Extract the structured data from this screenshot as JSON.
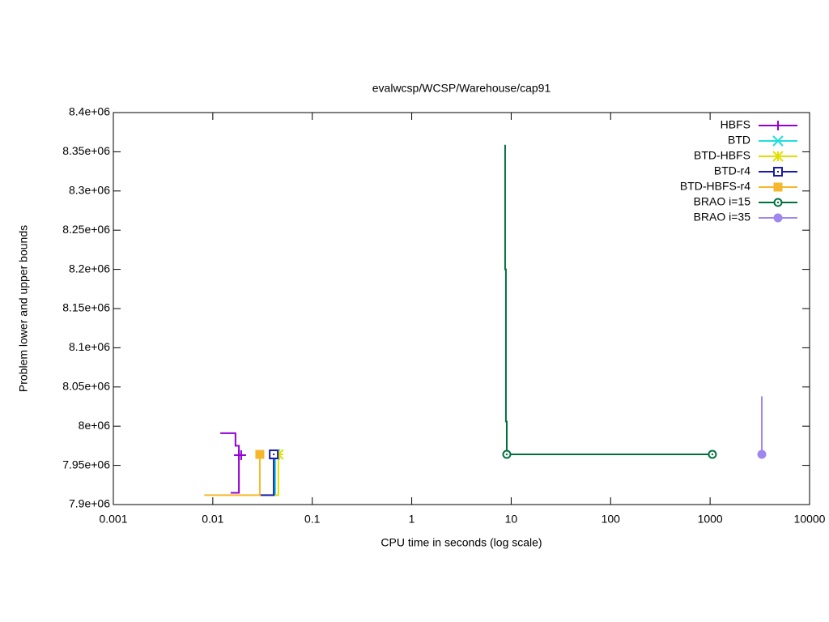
{
  "chart_data": {
    "type": "line",
    "title": "evalwcsp/WCSP/Warehouse/cap91",
    "x_label": "CPU time in seconds (log scale)",
    "y_label": "Problem lower and upper bounds",
    "x_scale": "log",
    "xlim": [
      0.001,
      10000
    ],
    "xticks": [
      0.001,
      0.01,
      0.1,
      1,
      10,
      100,
      1000,
      10000
    ],
    "ylim": [
      7900000,
      8400000
    ],
    "yticks": [
      {
        "value": 7900000,
        "label": "7.9e+06"
      },
      {
        "value": 7950000,
        "label": "7.95e+06"
      },
      {
        "value": 8000000,
        "label": "8e+06"
      },
      {
        "value": 8050000,
        "label": "8.05e+06"
      },
      {
        "value": 8100000,
        "label": "8.1e+06"
      },
      {
        "value": 8150000,
        "label": "8.15e+06"
      },
      {
        "value": 8200000,
        "label": "8.2e+06"
      },
      {
        "value": 8250000,
        "label": "8.25e+06"
      },
      {
        "value": 8300000,
        "label": "8.3e+06"
      },
      {
        "value": 8350000,
        "label": "8.35e+06"
      },
      {
        "value": 8400000,
        "label": "8.4e+06"
      }
    ],
    "legend": "top-right",
    "series": [
      {
        "name": "HBFS",
        "color": "#9400d3",
        "marker": "plus",
        "x": [
          0.0151,
          0.0183,
          0.0183,
          null,
          0.0119,
          0.0169,
          0.0169,
          0.0183,
          0.0183,
          0.0193
        ],
        "values": [
          7915000,
          7915000,
          7963000,
          null,
          7991000,
          7991000,
          7975000,
          7975000,
          7963000,
          7963000
        ]
      },
      {
        "name": "BTD",
        "color": "#22dede",
        "marker": "cross",
        "x": [
          0.041,
          0.0424,
          0.0424
        ],
        "values": [
          7912000,
          7912000,
          7964000
        ]
      },
      {
        "name": "BTD-HBFS",
        "color": "#e0e000",
        "marker": "star",
        "x": [
          0.0424,
          0.0457,
          0.0457
        ],
        "values": [
          7912000,
          7912000,
          7964000
        ]
      },
      {
        "name": "BTD-r4",
        "color": "#1a1aa8",
        "marker": "square-open",
        "x": [
          0.0297,
          0.041,
          0.041
        ],
        "values": [
          7912000,
          7912000,
          7964000
        ]
      },
      {
        "name": "BTD-HBFS-r4",
        "color": "#f5b82c",
        "marker": "square",
        "x": [
          0.0082,
          0.0297,
          0.0297
        ],
        "values": [
          7912000,
          7912000,
          7964000
        ]
      },
      {
        "name": "BRAO i=15",
        "color": "#00703f",
        "marker": "circle-open",
        "x": [
          8.69,
          8.69,
          8.85,
          8.85,
          9.03,
          9.03,
          null,
          9.03,
          1054
        ],
        "values": [
          8359000,
          8200000,
          8200000,
          8006000,
          8006000,
          7964000,
          null,
          7964000,
          7964000
        ]
      },
      {
        "name": "BRAO i=35",
        "color": "#9f86f0",
        "marker": "circle",
        "x": [
          3311,
          3311
        ],
        "values": [
          8038000,
          7964000
        ]
      }
    ]
  }
}
